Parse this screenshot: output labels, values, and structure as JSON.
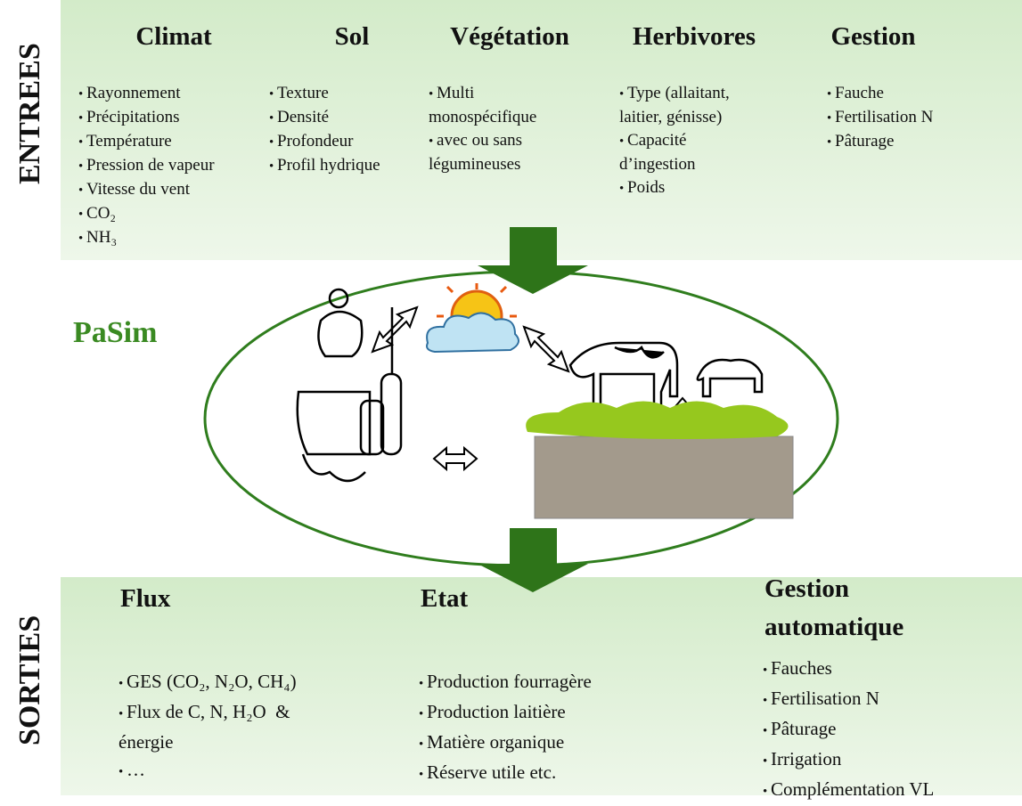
{
  "entrees": {
    "label": "ENTREES",
    "columns": [
      {
        "title": "Climat",
        "items": [
          [
            "Rayonnement"
          ],
          [
            "Précipitations"
          ],
          [
            "Température"
          ],
          [
            "Pression de vapeur"
          ],
          [
            "Vitesse du vent"
          ],
          [
            "CO₂"
          ],
          [
            "NH₃"
          ]
        ]
      },
      {
        "title": "Sol",
        "items": [
          [
            "Texture"
          ],
          [
            "Densité"
          ],
          [
            "Profondeur"
          ],
          [
            "Profil hydrique"
          ]
        ]
      },
      {
        "title": "Végétation",
        "items": [
          [
            "Multi",
            "monospécifique"
          ],
          [
            "avec ou sans",
            "légumineuses"
          ]
        ]
      },
      {
        "title": "Herbivores",
        "items": [
          [
            "Type (allaitant,",
            "laitier, génisse)"
          ],
          [
            "Capacité",
            "d’ingestion"
          ],
          [
            "Poids"
          ]
        ]
      },
      {
        "title": "Gestion",
        "items": [
          [
            "Fauche"
          ],
          [
            "Fertilisation N"
          ],
          [
            "Pâturage"
          ]
        ]
      }
    ]
  },
  "model": {
    "label": "PaSim"
  },
  "sorties": {
    "label": "SORTIES",
    "columns": [
      {
        "title": "Flux",
        "items": [
          [
            "GES (CO₂, N₂O, CH₄)"
          ],
          [
            "Flux de C, N, H₂O  &",
            "énergie"
          ],
          [
            "…"
          ]
        ]
      },
      {
        "title": "Etat",
        "items": [
          [
            "Production fourragère"
          ],
          [
            "Production laitière"
          ],
          [
            "Matière organique"
          ],
          [
            "Réserve utile etc."
          ]
        ]
      },
      {
        "title": "Gestion automatique",
        "items": [
          [
            "Fauches"
          ],
          [
            "Fertilisation N"
          ],
          [
            "Pâturage"
          ],
          [
            "Irrigation"
          ],
          [
            "Complémentation VL"
          ]
        ]
      }
    ]
  }
}
